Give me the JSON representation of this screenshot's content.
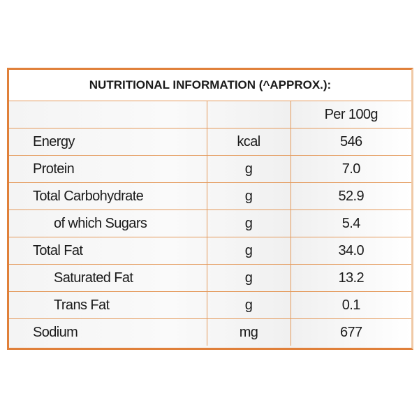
{
  "table": {
    "title": "NUTRITIONAL INFORMATION (^APPROX.):",
    "header": "Per 100g",
    "rows": [
      [
        "Energy",
        "kcal",
        "546"
      ],
      [
        "Protein",
        "g",
        "7.0"
      ],
      [
        "Total Carbohydrate",
        "g",
        "52.9"
      ],
      [
        "of which Sugars",
        "g",
        "5.4"
      ],
      [
        "Total Fat",
        "g",
        "34.0"
      ],
      [
        "Saturated Fat",
        "g",
        "13.2"
      ],
      [
        "Trans Fat",
        "g",
        "0.1"
      ],
      [
        "Sodium",
        "mg",
        "677"
      ]
    ]
  }
}
